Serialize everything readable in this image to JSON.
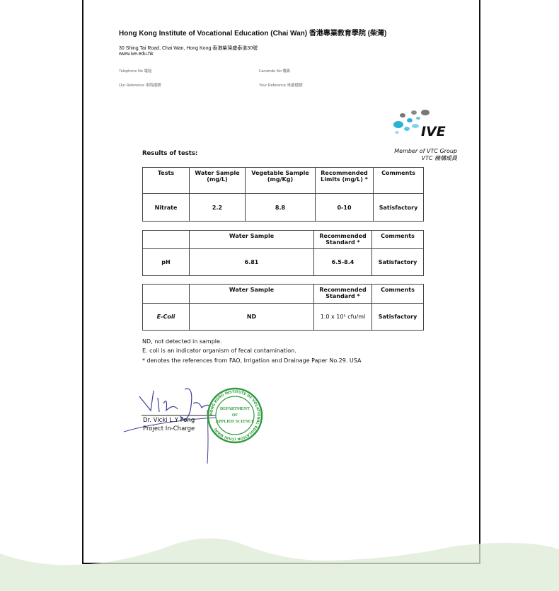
{
  "letterhead": {
    "institution": "Hong Kong Institute of Vocational Education (Chai Wan) 香港專業教育學院 (柴灣)",
    "address": "30 Shing Tai Road, Chai Wan, Hong Kong  香港柴灣盛泰道30號",
    "website": "www.ive.edu.hk",
    "telephone_label": "Telephone No 電話",
    "facsimile_label": "Facsimile No 傳真",
    "our_reference_label": "Our Reference 本院檔號",
    "your_reference_label": "Your Reference 來函檔號",
    "logo_text": "IVE",
    "member_line1": "Member of VTC Group",
    "member_line2": "VTC 機構成員"
  },
  "results_title": "Results of tests:",
  "nitrate_table": {
    "headers": [
      "Tests",
      "Water Sample (mg/L)",
      "Vegetable Sample (mg/Kg)",
      "Recommended Limits (mg/L) *",
      "Comments"
    ],
    "row": [
      "Nitrate",
      "2.2",
      "8.8",
      "0-10",
      "Satisfactory"
    ]
  },
  "ph_table": {
    "headers": [
      "",
      "Water Sample",
      "Recommended Standard *",
      "Comments"
    ],
    "row": [
      "pH",
      "6.81",
      "6.5-8.4",
      "Satisfactory"
    ]
  },
  "ecoli_table": {
    "headers": [
      "",
      "Water Sample",
      "Recommended Standard *",
      "Comments"
    ],
    "row": [
      "E-Coli",
      "ND",
      "1.0 x 10⁵ cfu/ml",
      "Satisfactory"
    ]
  },
  "notes": [
    "ND, not detected in sample.",
    "E. coli is an indicator organism of fecal contamination.",
    "* denotes the references from FAO, Irrigation and Drainage Paper No.29. USA"
  ],
  "signatory": {
    "name": "Dr. Vicki L Y Fong",
    "title": "Project In-Charge"
  },
  "stamp": {
    "text": "DEPARTMENT OF APPLIED SCIENCE",
    "ring_text": "HONG KONG INSTITUTE OF VOCATIONAL EDUCATION (CHAI WAN)"
  },
  "colors": {
    "stamp": "#2e9a3c",
    "logo_blue": "#2bb3d6",
    "logo_grey": "#777777",
    "wave": "#e3efdd"
  }
}
